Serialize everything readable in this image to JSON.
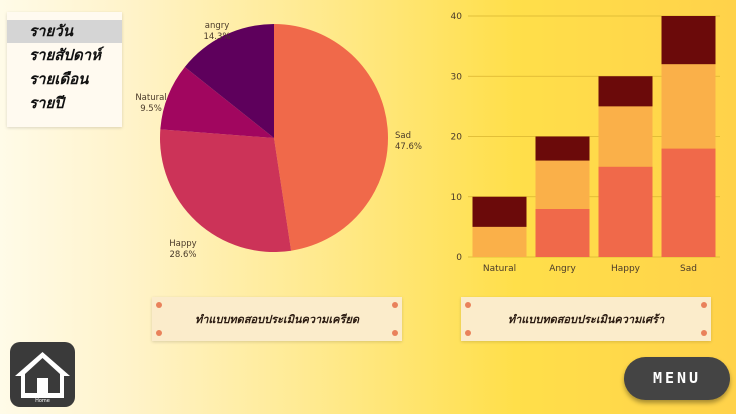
{
  "period_menu": {
    "items": [
      "รายวัน",
      "รายสัปดาห์",
      "รายเดือน",
      "รายปี"
    ],
    "active_index": 0
  },
  "actions": {
    "stress_test_label": "ทำแบบทดสอบประเมินความเครียด",
    "depression_test_label": "ทำแบบทดสอบประเมินความเศร้า"
  },
  "home_button": {
    "label": "Home",
    "icon": "home-icon"
  },
  "menu_button": {
    "label": "MENU"
  },
  "chart_data": [
    {
      "type": "pie",
      "slices": [
        {
          "label": "Sad",
          "value": 47.6,
          "value_label": "47.6%",
          "color": "#f0694a"
        },
        {
          "label": "Happy",
          "value": 28.6,
          "value_label": "28.6%",
          "color": "#cc3358"
        },
        {
          "label": "Natural",
          "value": 9.5,
          "value_label": "9.5%",
          "color": "#a1065f"
        },
        {
          "label": "angry",
          "value": 14.3,
          "value_label": "14.3%",
          "color": "#5e005c"
        }
      ]
    },
    {
      "type": "bar",
      "stacked": true,
      "categories": [
        "Natural",
        "Angry",
        "Happy",
        "Sad"
      ],
      "series": [
        {
          "values": [
            0,
            8,
            15,
            18
          ],
          "color": "#f0694a"
        },
        {
          "values": [
            5,
            8,
            10,
            14
          ],
          "color": "#fab049"
        },
        {
          "values": [
            5,
            4,
            5,
            8
          ],
          "color": "#6b0a0a"
        }
      ],
      "ylim": [
        0,
        40
      ],
      "yticks": [
        0,
        10,
        20,
        30,
        40
      ],
      "grid": true
    }
  ]
}
